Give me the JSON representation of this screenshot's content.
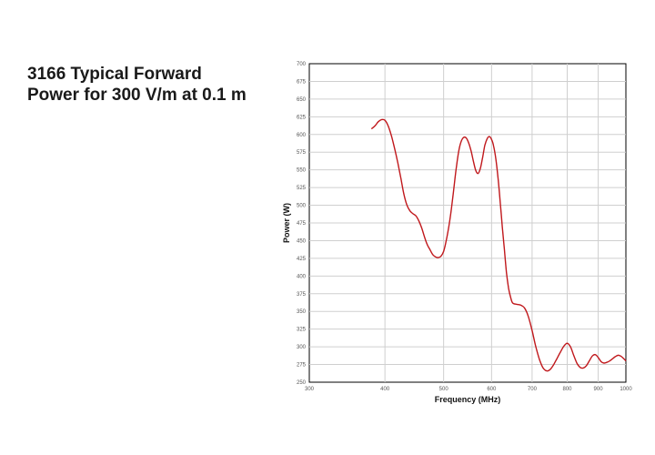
{
  "title_lines": [
    "3166 Typical Forward",
    "Power for 300 V/m at 0.1 m"
  ],
  "chart_data": {
    "type": "line",
    "title": "3166 Typical Forward Power for 300 V/m at 0.1 m",
    "xlabel": "Frequency (MHz)",
    "ylabel": "Power (W)",
    "x_scale": "log",
    "xlim": [
      300,
      1000
    ],
    "ylim": [
      250,
      700
    ],
    "x_ticks": [
      300,
      400,
      500,
      600,
      700,
      800,
      900,
      1000
    ],
    "x_tick_labels": [
      "300",
      "400",
      "500",
      "600",
      "700",
      "800",
      "900",
      "1000"
    ],
    "y_ticks": [
      250,
      275,
      300,
      325,
      350,
      375,
      400,
      425,
      450,
      475,
      500,
      525,
      550,
      575,
      600,
      625,
      650,
      675,
      700
    ],
    "grid": true,
    "line_color": "#c0181c",
    "series": [
      {
        "x": [
          380,
          385,
          390,
          395,
          400,
          405,
          410,
          415,
          420,
          425,
          430,
          435,
          440,
          445,
          450,
          455,
          460,
          465,
          470,
          475,
          480,
          485,
          490,
          495,
          500,
          505,
          510,
          515,
          520,
          525,
          530,
          535,
          540,
          545,
          550,
          555,
          560,
          565,
          570,
          575,
          580,
          585,
          590,
          595,
          600,
          605,
          610,
          615,
          620,
          625,
          630,
          635,
          640,
          645,
          650,
          660,
          670,
          680,
          690,
          700,
          710,
          720,
          730,
          740,
          750,
          760,
          770,
          780,
          790,
          800,
          810,
          820,
          830,
          840,
          850,
          860,
          870,
          880,
          890,
          900,
          910,
          920,
          930,
          940,
          950,
          960,
          970,
          980,
          990,
          1000
        ],
        "y": [
          608,
          612,
          618,
          621,
          620,
          612,
          598,
          580,
          560,
          538,
          515,
          500,
          492,
          488,
          485,
          478,
          468,
          455,
          444,
          437,
          430,
          427,
          426,
          428,
          435,
          450,
          470,
          495,
          525,
          555,
          578,
          591,
          596,
          595,
          588,
          577,
          562,
          549,
          545,
          552,
          568,
          585,
          594,
          597,
          593,
          583,
          565,
          538,
          505,
          470,
          437,
          405,
          383,
          370,
          362,
          360,
          359,
          355,
          343,
          323,
          300,
          282,
          270,
          266,
          268,
          275,
          284,
          293,
          301,
          305,
          300,
          288,
          277,
          271,
          270,
          273,
          280,
          287,
          289,
          285,
          279,
          277,
          278,
          280,
          283,
          286,
          288,
          287,
          284,
          280
        ]
      }
    ]
  }
}
